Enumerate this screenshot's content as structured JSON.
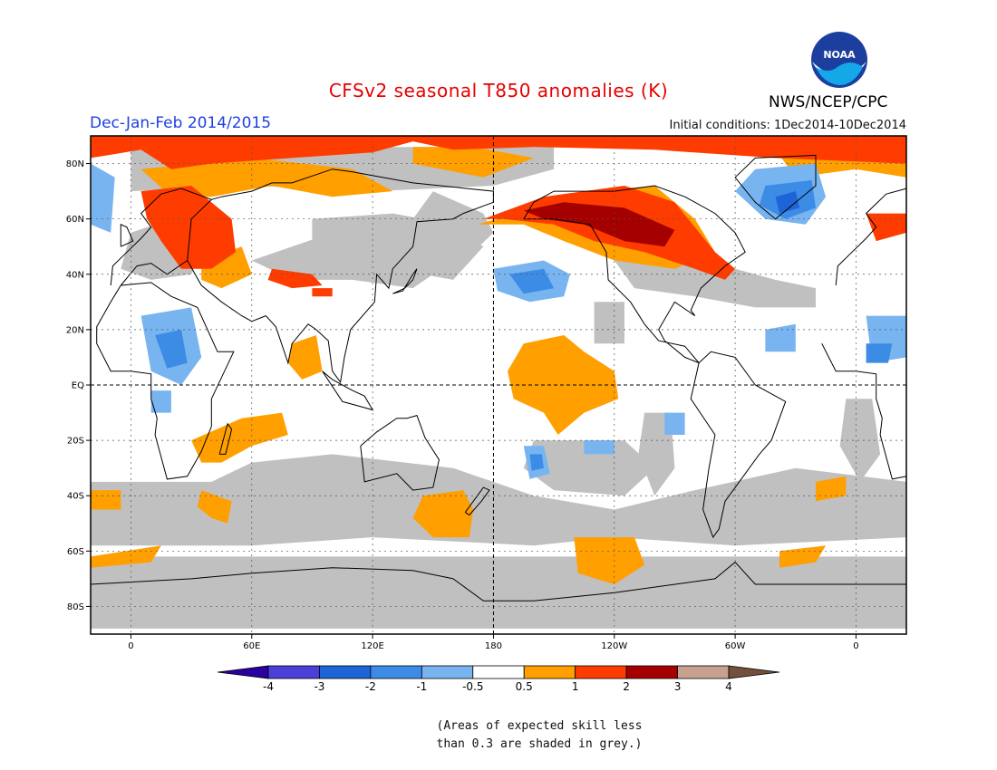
{
  "title": "CFSv2 seasonal T850 anomalies (K)",
  "season": "Dec-Jan-Feb 2014/2015",
  "initial_conditions": "Initial conditions: 1Dec2014-10Dec2014",
  "agency": "NWS/NCEP/CPC",
  "logo_text": "NOAA",
  "note_lines": [
    "(Areas of expected skill less",
    "than 0.3 are shaded in grey.)"
  ],
  "map": {
    "lon_range": [
      -20,
      385
    ],
    "lat_range": [
      -90,
      90
    ],
    "lat_ticks": [
      {
        "lat": 80,
        "label": "80N"
      },
      {
        "lat": 60,
        "label": "60N"
      },
      {
        "lat": 40,
        "label": "40N"
      },
      {
        "lat": 20,
        "label": "20N"
      },
      {
        "lat": 0,
        "label": "EQ"
      },
      {
        "lat": -20,
        "label": "20S"
      },
      {
        "lat": -40,
        "label": "40S"
      },
      {
        "lat": -60,
        "label": "60S"
      },
      {
        "lat": -80,
        "label": "80S"
      }
    ],
    "lon_ticks": [
      {
        "lon": 0,
        "label": "0"
      },
      {
        "lon": 60,
        "label": "60E"
      },
      {
        "lon": 120,
        "label": "120E"
      },
      {
        "lon": 180,
        "label": "180"
      },
      {
        "lon": 240,
        "label": "120W"
      },
      {
        "lon": 300,
        "label": "60W"
      },
      {
        "lon": 360,
        "label": "0"
      }
    ],
    "grid": true
  },
  "colorbar": {
    "labels": [
      "-4",
      "-3",
      "-2",
      "-1",
      "-0.5",
      "0.5",
      "1",
      "2",
      "3",
      "4"
    ],
    "colors": [
      "#2a00a0",
      "#4a3fd6",
      "#1e64d6",
      "#3c8ce6",
      "#78b4f0",
      "#ffffff",
      "#ff9f00",
      "#ff3c00",
      "#a50000",
      "#c8a090",
      "#73503c"
    ]
  },
  "colors": {
    "skill_grey": "#c0c0c0",
    "orange": "#ff9f00",
    "red_orange": "#ff3c00",
    "dark_red": "#a50000",
    "light_blue": "#78b4f0",
    "mid_blue": "#3c8ce6",
    "blue": "#1e64d6"
  }
}
